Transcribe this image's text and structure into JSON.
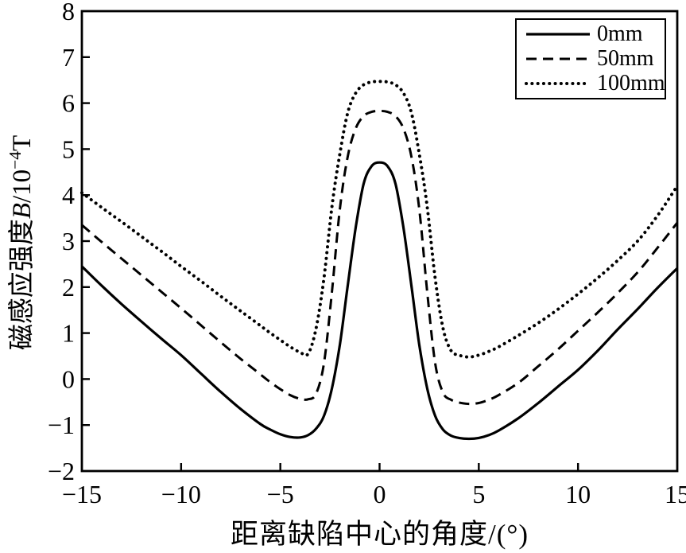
{
  "figure": {
    "background": "#ffffff",
    "ink_color": "#000000"
  },
  "axes": {
    "x": {
      "label_text": "距离缺陷中心的角度/(°)",
      "min": -15,
      "max": 15,
      "tick_values": [
        -15,
        -10,
        -5,
        0,
        5,
        10,
        15
      ],
      "tick_labels": [
        "−15",
        "−10",
        "−5",
        "0",
        "5",
        "10",
        "15"
      ]
    },
    "y": {
      "label_prefix": "磁感应强度",
      "label_symbol": "B",
      "label_mid": "/10",
      "label_sup": "−4",
      "label_unit": "T",
      "min": -2,
      "max": 8,
      "tick_values": [
        -2,
        -1,
        0,
        1,
        2,
        3,
        4,
        5,
        6,
        7,
        8
      ],
      "tick_labels": [
        "−2",
        "−1",
        "0",
        "1",
        "2",
        "3",
        "4",
        "5",
        "6",
        "7",
        "8"
      ]
    }
  },
  "legend": {
    "entries": [
      {
        "label": "0mm",
        "style": "solid"
      },
      {
        "label": "50mm",
        "style": "dashed"
      },
      {
        "label": "100mm",
        "style": "dotted"
      }
    ]
  },
  "chart_data": {
    "type": "line",
    "title": "",
    "xlabel": "距离缺陷中心的角度/(°)",
    "ylabel": "磁感应强度B/10⁻⁴T",
    "xlim": [
      -15,
      15
    ],
    "ylim": [
      -2,
      8
    ],
    "grid": false,
    "legend_position": "top-right",
    "x": [
      -15,
      -14,
      -13,
      -12,
      -11,
      -10,
      -9,
      -8,
      -7,
      -6,
      -5.5,
      -5,
      -4.5,
      -4,
      -3.6,
      -3.2,
      -2.8,
      -2.4,
      -2,
      -1.6,
      -1.2,
      -0.8,
      -0.4,
      0,
      0.4,
      0.8,
      1.2,
      1.6,
      2,
      2.4,
      2.8,
      3.2,
      3.6,
      4,
      4.5,
      5,
      5.5,
      6,
      7,
      8,
      9,
      10,
      11,
      12,
      13,
      14,
      15
    ],
    "series": [
      {
        "name": "0mm",
        "style": "solid",
        "values": [
          2.45,
          2.03,
          1.63,
          1.25,
          0.88,
          0.52,
          0.12,
          -0.28,
          -0.65,
          -0.98,
          -1.1,
          -1.2,
          -1.26,
          -1.27,
          -1.22,
          -1.08,
          -0.8,
          -0.2,
          0.75,
          2.05,
          3.3,
          4.25,
          4.63,
          4.71,
          4.63,
          4.25,
          3.3,
          2.05,
          0.75,
          -0.2,
          -0.8,
          -1.1,
          -1.23,
          -1.28,
          -1.3,
          -1.28,
          -1.22,
          -1.12,
          -0.85,
          -0.52,
          -0.16,
          0.2,
          0.62,
          1.08,
          1.52,
          1.98,
          2.41
        ]
      },
      {
        "name": "50mm",
        "style": "dashed",
        "values": [
          3.35,
          2.98,
          2.62,
          2.26,
          1.9,
          1.54,
          1.17,
          0.8,
          0.44,
          0.1,
          -0.07,
          -0.22,
          -0.35,
          -0.43,
          -0.44,
          -0.32,
          0.35,
          1.9,
          3.7,
          4.85,
          5.45,
          5.72,
          5.81,
          5.83,
          5.81,
          5.72,
          5.45,
          4.85,
          3.7,
          1.9,
          0.35,
          -0.3,
          -0.45,
          -0.51,
          -0.54,
          -0.52,
          -0.45,
          -0.35,
          -0.08,
          0.28,
          0.65,
          1.05,
          1.45,
          1.87,
          2.32,
          2.85,
          3.4
        ]
      },
      {
        "name": "100mm",
        "style": "dotted",
        "values": [
          4.05,
          3.73,
          3.42,
          3.1,
          2.78,
          2.45,
          2.13,
          1.8,
          1.48,
          1.16,
          1.0,
          0.85,
          0.7,
          0.58,
          0.55,
          1.1,
          2.2,
          3.75,
          4.9,
          5.8,
          6.22,
          6.4,
          6.46,
          6.47,
          6.46,
          6.4,
          6.22,
          5.8,
          4.9,
          3.75,
          2.2,
          1.1,
          0.62,
          0.52,
          0.48,
          0.52,
          0.6,
          0.7,
          0.95,
          1.22,
          1.52,
          1.85,
          2.2,
          2.58,
          3.0,
          3.55,
          4.2
        ]
      }
    ]
  }
}
